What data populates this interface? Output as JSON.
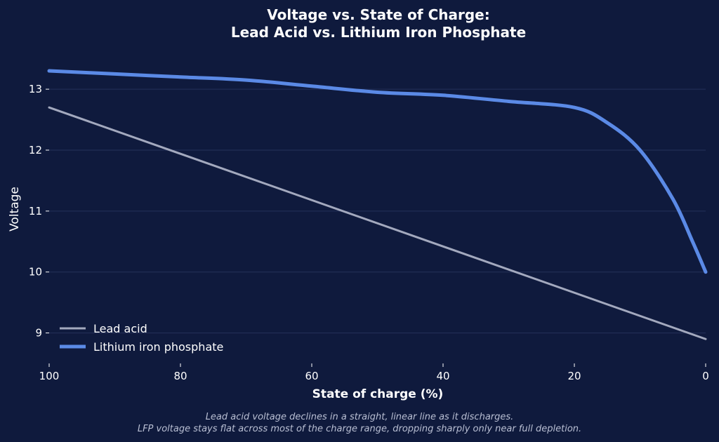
{
  "colors": {
    "background": "#0f1a3d",
    "grid": "#25315a",
    "text": "#ffffff",
    "caption": "#b9bfd3"
  },
  "chart_data": {
    "type": "line",
    "title_lines": [
      "Voltage vs. State of Charge:",
      "Lead Acid vs. Lithium Iron Phosphate"
    ],
    "xlabel": "State of charge (%)",
    "ylabel": "Voltage",
    "xlim": [
      100,
      0
    ],
    "ylim": [
      8.5,
      13.6
    ],
    "x_ticks": [
      100,
      80,
      60,
      40,
      20,
      0
    ],
    "y_ticks": [
      9,
      10,
      11,
      12,
      13
    ],
    "grid": "horizontal",
    "legend_position": "lower-left",
    "series": [
      {
        "name": "Lead acid",
        "color": "#a3a9be",
        "points": [
          [
            100,
            12.7
          ],
          [
            0,
            8.9
          ]
        ]
      },
      {
        "name": "Lithium iron phosphate",
        "color": "#5b8ae6",
        "points": [
          [
            100,
            13.3
          ],
          [
            90,
            13.25
          ],
          [
            80,
            13.2
          ],
          [
            70,
            13.15
          ],
          [
            60,
            13.05
          ],
          [
            50,
            12.95
          ],
          [
            40,
            12.9
          ],
          [
            30,
            12.8
          ],
          [
            20,
            12.7
          ],
          [
            15,
            12.45
          ],
          [
            10,
            12.0
          ],
          [
            5,
            11.2
          ],
          [
            2,
            10.5
          ],
          [
            0,
            10.0
          ]
        ]
      }
    ],
    "caption_lines": [
      "Lead acid voltage declines in a straight, linear line as it discharges.",
      "LFP voltage stays flat across most of the charge range, dropping sharply only near full depletion."
    ]
  }
}
